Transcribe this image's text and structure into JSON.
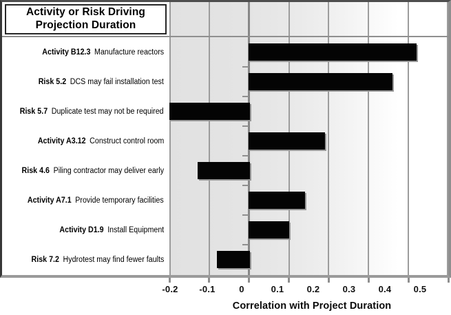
{
  "title_box": {
    "line1": "Activity or Risk Driving",
    "line2": "Projection Duration"
  },
  "chart_data": {
    "type": "bar",
    "orientation": "horizontal",
    "title": "Activity or Risk Driving Projection Duration",
    "xlabel": "Correlation with Project Duration",
    "xlim": [
      -0.2,
      0.5
    ],
    "xticks": [
      -0.2,
      -0.1,
      0,
      0.1,
      0.2,
      0.3,
      0.4,
      0.5
    ],
    "xtick_labels": [
      "-0.2",
      "-0.1",
      "0",
      "0.1",
      "0.2",
      "0.3",
      "0.4",
      "0.5"
    ],
    "grid": true,
    "legend": "none",
    "bar_color": "#000000",
    "plot_background": "gradient gray to white, left to right",
    "categories": [
      "Activity B12.3  Manufacture reactors",
      "Risk 5.2  DCS may fail installation test",
      "Risk 5.7  Duplicate test may not be required",
      "Activity A3.12  Construct control room",
      "Risk 4.6  Piling contractor may deliver early",
      "Activity A7.1  Provide temporary facilities",
      "Activity D1.9  Install Equipment",
      "Risk 7.2  Hydrotest may find fewer faults"
    ],
    "rows": [
      {
        "label_bold": "Activity B12.3",
        "label_text": "Manufacture reactors",
        "value": 0.42
      },
      {
        "label_bold": "Risk 5.2",
        "label_text": "DCS may fail installation test",
        "value": 0.36
      },
      {
        "label_bold": "Risk 5.7",
        "label_text": "Duplicate test may not be required",
        "value": -0.2
      },
      {
        "label_bold": "Activity A3.12",
        "label_text": "Construct control room",
        "value": 0.19
      },
      {
        "label_bold": "Risk 4.6",
        "label_text": "Piling contractor may deliver early",
        "value": -0.13
      },
      {
        "label_bold": "Activity A7.1",
        "label_text": "Provide temporary facilities",
        "value": 0.14
      },
      {
        "label_bold": "Activity D1.9",
        "label_text": "Install Equipment",
        "value": 0.1
      },
      {
        "label_bold": "Risk 7.2",
        "label_text": "Hydrotest may find fewer faults",
        "value": -0.08
      }
    ]
  }
}
